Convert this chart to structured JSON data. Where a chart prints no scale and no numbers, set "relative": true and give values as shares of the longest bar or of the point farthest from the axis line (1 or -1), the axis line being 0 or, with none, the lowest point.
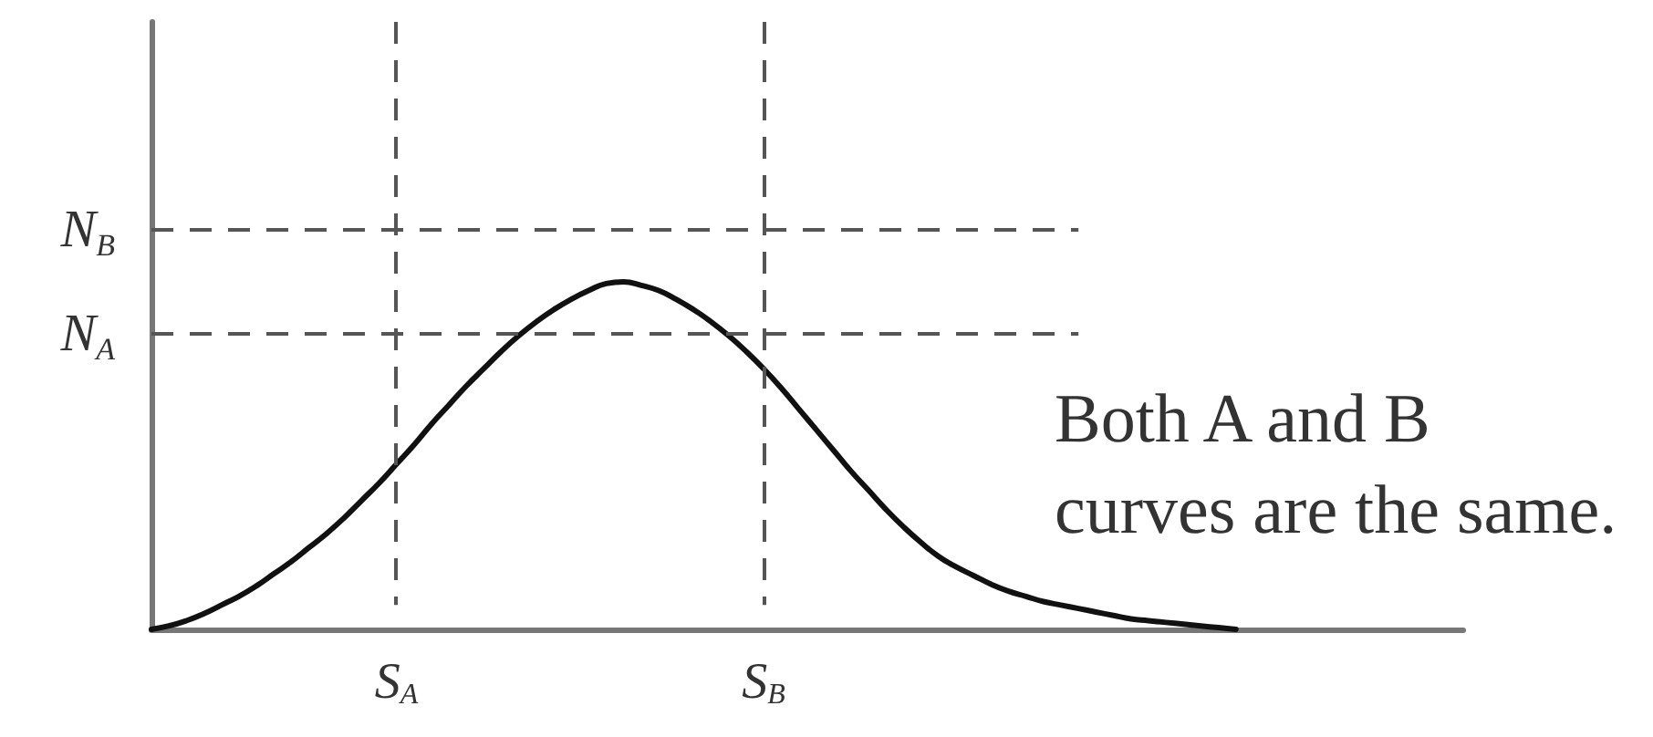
{
  "chart_data": {
    "type": "line",
    "relative": true,
    "categories": [
      null,
      null,
      null,
      null,
      null,
      null,
      null,
      null,
      null,
      null,
      null,
      null,
      null,
      null,
      "S$_{A}$",
      null,
      null,
      null,
      null,
      null,
      null,
      null,
      null,
      null,
      null,
      null,
      null,
      null,
      null,
      null,
      null,
      null,
      null,
      null,
      null,
      "S$_{B}$",
      null,
      null,
      null,
      null,
      null,
      null,
      null,
      null,
      null,
      null,
      null,
      null,
      null,
      null,
      null,
      null,
      null,
      null,
      null,
      null,
      null,
      null,
      null,
      null,
      null,
      null,
      null,
      null,
      null,
      null,
      null,
      null,
      null,
      null,
      null,
      null,
      null,
      null,
      null,
      null
    ],
    "series": [
      {
        "color": "#111111",
        "values": [
          0,
          0.01,
          0.025,
          0.045,
          0.07,
          0.095,
          0.125,
          0.16,
          0.195,
          0.235,
          0.275,
          0.32,
          0.37,
          0.42,
          0.475,
          0.53,
          0.59,
          0.645,
          0.7,
          0.75,
          0.8,
          0.845,
          0.885,
          0.92,
          0.95,
          0.975,
          0.995,
          1,
          0.99,
          0.975,
          0.95,
          0.92,
          0.885,
          0.845,
          0.8,
          0.75,
          0.695,
          0.635,
          0.575,
          0.515,
          0.455,
          0.4,
          0.345,
          0.295,
          0.25,
          0.21,
          0.18,
          0.155,
          0.13,
          0.11,
          0.095,
          0.08,
          0.07,
          0.06,
          0.05,
          0.04,
          0.03,
          0.025,
          0.02,
          0.015,
          0.01,
          0.005,
          0,
          null,
          null,
          null,
          null,
          null,
          null,
          null,
          null,
          null,
          null,
          null,
          null,
          null
        ]
      }
    ],
    "ref_lines": [
      {
        "axis": "x",
        "value": "S$_{A}$",
        "color": "#555555",
        "line_style": "dashed"
      },
      {
        "axis": "x",
        "value": "S$_{B}$",
        "color": "#555555",
        "line_style": "dashed"
      },
      {
        "axis": "y",
        "value": 0.85,
        "label": "N$_{A}$",
        "color": "#555555",
        "line_style": "dashed"
      },
      {
        "axis": "y",
        "value": 1.15,
        "label": "N$_{B}$",
        "color": "#555555",
        "line_style": "dashed"
      }
    ],
    "annotations": [
      "Both A and B\ncurves are the same."
    ],
    "grid": false,
    "marker": "none",
    "line_style": "solid"
  }
}
